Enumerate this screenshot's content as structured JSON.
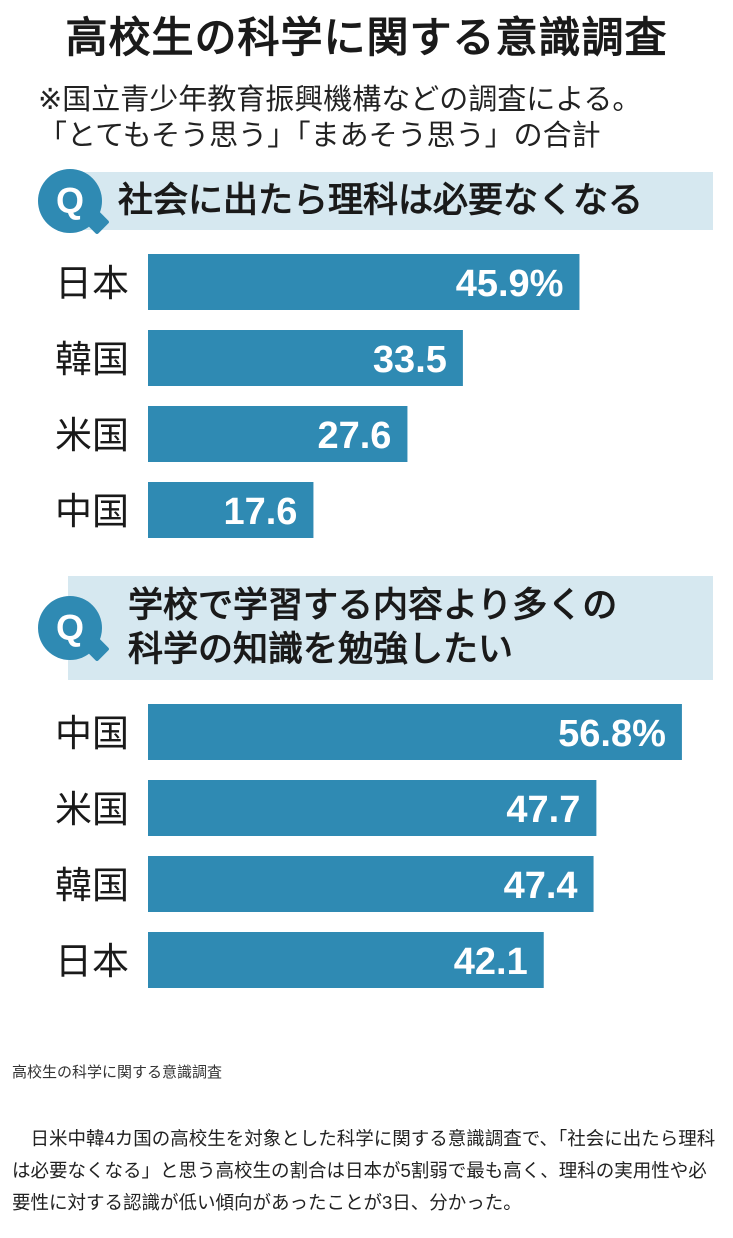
{
  "title": "高校生の科学に関する意識調査",
  "notes": [
    "※国立青少年教育振興機構などの調査による。",
    "「とてもそう思う」「まあそう思う」の合計"
  ],
  "q_label": "Q",
  "colors": {
    "bar": "#2f8ab3",
    "question_bg": "#d6e8f0",
    "value_text": "#ffffff"
  },
  "chart_data": [
    {
      "type": "bar",
      "orientation": "horizontal",
      "title": "社会に出たら理科は必要なくなる",
      "categories": [
        "日本",
        "韓国",
        "米国",
        "中国"
      ],
      "values": [
        45.9,
        33.5,
        27.6,
        17.6
      ],
      "value_labels": [
        "45.9%",
        "33.5",
        "27.6",
        "17.6"
      ],
      "unit": "%",
      "xlim": [
        0,
        60
      ],
      "grid": false
    },
    {
      "type": "bar",
      "orientation": "horizontal",
      "title": "学校で学習する内容より多くの科学の知識を勉強したい",
      "title_lines": [
        "学校で学習する内容より多くの",
        "科学の知識を勉強したい"
      ],
      "categories": [
        "中国",
        "米国",
        "韓国",
        "日本"
      ],
      "values": [
        56.8,
        47.7,
        47.4,
        42.1
      ],
      "value_labels": [
        "56.8%",
        "47.7",
        "47.4",
        "42.1"
      ],
      "unit": "%",
      "xlim": [
        0,
        60
      ],
      "grid": false
    }
  ],
  "caption": "高校生の科学に関する意識調査",
  "article": "日米中韓4カ国の高校生を対象とした科学に関する意識調査で、「社会に出たら理科は必要なくなる」と思う高校生の割合は日本が5割弱で最も高く、理科の実用性や必要性に対する認識が低い傾向があったことが3日、分かった。"
}
